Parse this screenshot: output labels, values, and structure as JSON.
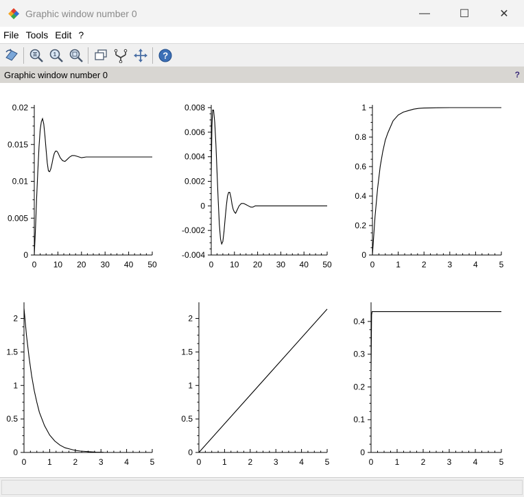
{
  "window": {
    "title": "Graphic window number 0",
    "controls": {
      "minimize": "—",
      "maximize": "☐",
      "close": "✕"
    }
  },
  "menu": [
    "File",
    "Tools",
    "Edit",
    "?"
  ],
  "toolbar": {
    "icons": [
      "rotate-icon",
      "zoom-in-icon",
      "zoom-original-icon",
      "zoom-area-icon",
      "datatip-icon",
      "link-icon",
      "pan-icon",
      "help-icon"
    ]
  },
  "infobar": {
    "text": "Graphic window number 0",
    "help": "?"
  },
  "colors": {
    "line": "#000000",
    "background": "#ffffff",
    "infobar": "#d8d6d2"
  },
  "chart_data": [
    {
      "type": "line",
      "xlim": [
        0,
        50
      ],
      "ylim": [
        0,
        0.02
      ],
      "xticks": [
        0,
        10,
        20,
        30,
        40,
        50
      ],
      "xtick_labels": [
        "0",
        "10",
        "20",
        "30",
        "40",
        "50"
      ],
      "yticks": [
        0,
        0.005,
        0.01,
        0.015,
        0.02
      ],
      "ytick_labels": [
        "0",
        "0.005",
        "0.01",
        "0.015",
        "0.02"
      ],
      "x": [
        0,
        0.5,
        1,
        1.5,
        2,
        2.5,
        3,
        3.5,
        4,
        4.5,
        5,
        5.5,
        6,
        6.5,
        7,
        7.5,
        8,
        8.5,
        9,
        9.5,
        10,
        11,
        12,
        13,
        14,
        15,
        16,
        17,
        18,
        19,
        20,
        22,
        25,
        30,
        35,
        40,
        45,
        50
      ],
      "y": [
        0,
        0.0035,
        0.0077,
        0.0115,
        0.0147,
        0.017,
        0.0181,
        0.0185,
        0.0178,
        0.0162,
        0.0143,
        0.0125,
        0.0114,
        0.0113,
        0.0117,
        0.0124,
        0.0132,
        0.0138,
        0.0141,
        0.0141,
        0.0139,
        0.0132,
        0.0128,
        0.0127,
        0.013,
        0.0133,
        0.0135,
        0.0135,
        0.0134,
        0.0133,
        0.0132,
        0.0133,
        0.0133,
        0.0133,
        0.0133,
        0.0133,
        0.0133,
        0.0133
      ]
    },
    {
      "type": "line",
      "xlim": [
        0,
        50
      ],
      "ylim": [
        -0.004,
        0.008
      ],
      "xticks": [
        0,
        10,
        20,
        30,
        40,
        50
      ],
      "xtick_labels": [
        "0",
        "10",
        "20",
        "30",
        "40",
        "50"
      ],
      "yticks": [
        -0.004,
        -0.002,
        0,
        0.002,
        0.004,
        0.006,
        0.008
      ],
      "ytick_labels": [
        "-0.004",
        "-0.002",
        "0",
        "0.002",
        "0.004",
        "0.006",
        "0.008"
      ],
      "x": [
        0,
        0.3,
        0.6,
        1,
        1.5,
        2,
        2.5,
        3,
        3.5,
        4,
        4.5,
        5,
        5.5,
        6,
        6.5,
        7,
        7.5,
        8,
        8.5,
        9,
        9.5,
        10,
        10.5,
        11,
        11.5,
        12,
        12.5,
        13,
        14,
        15,
        16,
        17,
        18,
        19,
        20,
        22,
        25,
        30,
        40,
        50
      ],
      "y": [
        0.0025,
        0.0065,
        0.0078,
        0.0078,
        0.0068,
        0.005,
        0.0028,
        0.0005,
        -0.0015,
        -0.0027,
        -0.0031,
        -0.0029,
        -0.0021,
        -0.001,
        0.0,
        0.0008,
        0.0011,
        0.0011,
        0.0007,
        0.0001,
        -0.0003,
        -0.0005,
        -0.0006,
        -0.0004,
        -0.0002,
        0.0,
        0.0001,
        0.0002,
        0.0002,
        0.0001,
        0.0,
        -0.0001,
        -0.0001,
        0.0,
        0.0,
        0.0,
        0.0,
        0.0,
        0.0,
        0.0
      ]
    },
    {
      "type": "line",
      "xlim": [
        0,
        5
      ],
      "ylim": [
        0,
        1
      ],
      "xticks": [
        0,
        1,
        2,
        3,
        4,
        5
      ],
      "xtick_labels": [
        "0",
        "1",
        "2",
        "3",
        "4",
        "5"
      ],
      "yticks": [
        0,
        0.2,
        0.4,
        0.6,
        0.8,
        1
      ],
      "ytick_labels": [
        "0",
        "0.2",
        "0.4",
        "0.6",
        "0.8",
        "1"
      ],
      "x": [
        0,
        0.05,
        0.1,
        0.2,
        0.3,
        0.4,
        0.5,
        0.6,
        0.8,
        1,
        1.2,
        1.4,
        1.6,
        1.8,
        2,
        2.25,
        2.5,
        3,
        3.5,
        4,
        4.5,
        5
      ],
      "y": [
        0,
        0.13,
        0.26,
        0.45,
        0.6,
        0.7,
        0.78,
        0.83,
        0.91,
        0.95,
        0.97,
        0.98,
        0.99,
        0.995,
        0.997,
        0.998,
        0.999,
        1,
        1,
        1,
        1,
        1
      ]
    },
    {
      "type": "line",
      "xlim": [
        0,
        5
      ],
      "ylim": [
        0,
        2.2
      ],
      "xticks": [
        0,
        1,
        2,
        3,
        4,
        5
      ],
      "xtick_labels": [
        "0",
        "1",
        "2",
        "3",
        "4",
        "5"
      ],
      "yticks": [
        0,
        0.5,
        1,
        1.5,
        2
      ],
      "ytick_labels": [
        "0",
        "0.5",
        "1",
        "1.5",
        "2"
      ],
      "x": [
        0,
        0.1,
        0.2,
        0.3,
        0.4,
        0.5,
        0.6,
        0.8,
        1,
        1.2,
        1.4,
        1.6,
        1.8,
        2,
        2.2,
        2.4,
        2.6,
        2.8,
        3,
        3.1
      ],
      "y": [
        2.15,
        1.74,
        1.41,
        1.14,
        0.92,
        0.75,
        0.6,
        0.4,
        0.26,
        0.17,
        0.11,
        0.07,
        0.05,
        0.03,
        0.02,
        0.015,
        0.01,
        0.005,
        0.003,
        0.002
      ]
    },
    {
      "type": "line",
      "xlim": [
        0,
        5
      ],
      "ylim": [
        0,
        2.2
      ],
      "xticks": [
        0,
        1,
        2,
        3,
        4,
        5
      ],
      "xtick_labels": [
        "0",
        "1",
        "2",
        "3",
        "4",
        "5"
      ],
      "yticks": [
        0,
        0.5,
        1,
        1.5,
        2
      ],
      "ytick_labels": [
        "0",
        "0.5",
        "1",
        "1.5",
        "2"
      ],
      "x": [
        0,
        5
      ],
      "y": [
        0,
        2.14
      ]
    },
    {
      "type": "line",
      "xlim": [
        0,
        5
      ],
      "ylim": [
        0,
        0.45
      ],
      "xticks": [
        0,
        1,
        2,
        3,
        4,
        5
      ],
      "xtick_labels": [
        "0",
        "1",
        "2",
        "3",
        "4",
        "5"
      ],
      "yticks": [
        0,
        0.1,
        0.2,
        0.3,
        0.4
      ],
      "ytick_labels": [
        "0",
        "0.1",
        "0.2",
        "0.3",
        "0.4"
      ],
      "x": [
        0,
        0.02,
        0.04,
        0.06,
        5
      ],
      "y": [
        0.25,
        0.42,
        0.43,
        0.43,
        0.43
      ]
    }
  ]
}
